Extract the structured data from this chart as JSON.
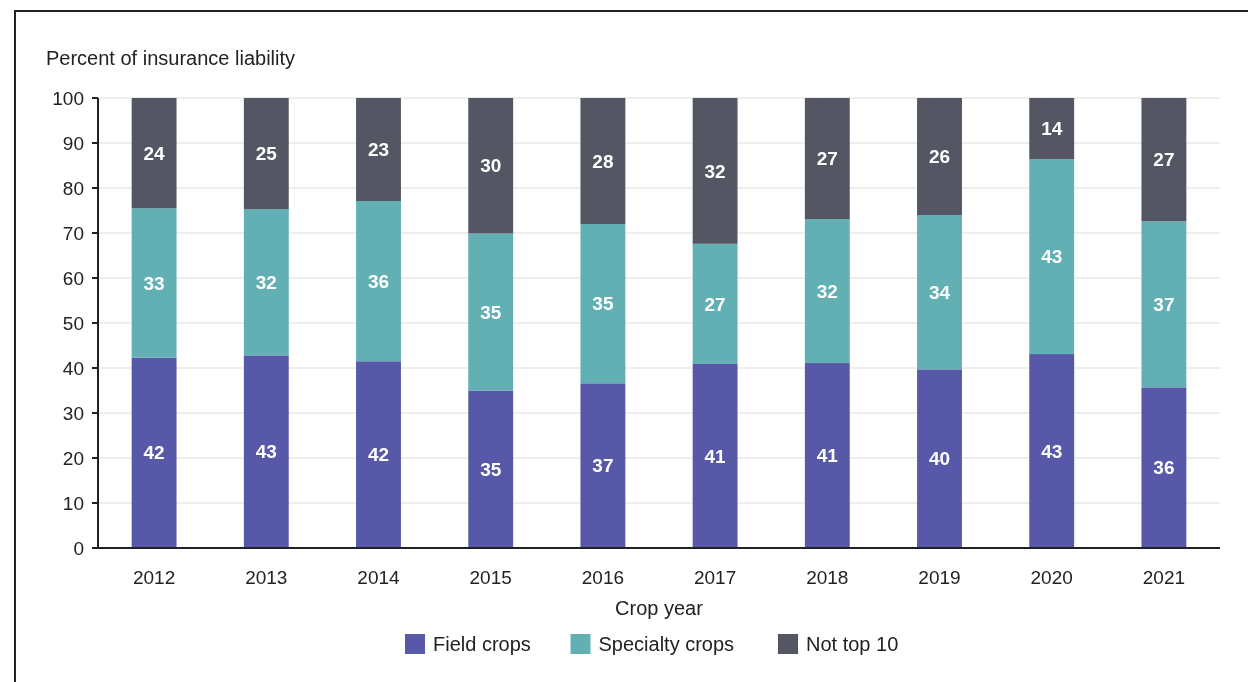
{
  "chart_data": {
    "type": "bar",
    "stacked": true,
    "ylabel": "Percent of insurance liability",
    "xlabel": "Crop year",
    "categories": [
      "2012",
      "2013",
      "2014",
      "2015",
      "2016",
      "2017",
      "2018",
      "2019",
      "2020",
      "2021"
    ],
    "series": [
      {
        "name": "Field crops",
        "color": "#5759a8",
        "values": [
          42.3,
          42.8,
          41.5,
          35.0,
          36.6,
          40.9,
          41.1,
          39.7,
          43.1,
          35.7
        ],
        "value_labels": [
          "42",
          "43",
          "42",
          "35",
          "37",
          "41",
          "41",
          "40",
          "43",
          "36"
        ]
      },
      {
        "name": "Specialty crops",
        "color": "#62afb4",
        "values": [
          33.2,
          32.5,
          35.6,
          34.9,
          35.4,
          26.7,
          32.0,
          34.3,
          43.3,
          36.9
        ],
        "value_labels": [
          "33",
          "32",
          "36",
          "35",
          "35",
          "27",
          "32",
          "34",
          "43",
          "37"
        ]
      },
      {
        "name": "Not top 10",
        "color": "#545663",
        "values": [
          24.5,
          24.7,
          22.9,
          30.1,
          28.0,
          32.4,
          26.9,
          26.0,
          13.6,
          27.4
        ],
        "value_labels": [
          "24",
          "25",
          "23",
          "30",
          "28",
          "32",
          "27",
          "26",
          "14",
          "27"
        ]
      }
    ],
    "ylim": [
      0,
      100
    ],
    "yticks": [
      0,
      10,
      20,
      30,
      40,
      50,
      60,
      70,
      80,
      90,
      100
    ],
    "grid": "y",
    "legend": "bottom"
  }
}
